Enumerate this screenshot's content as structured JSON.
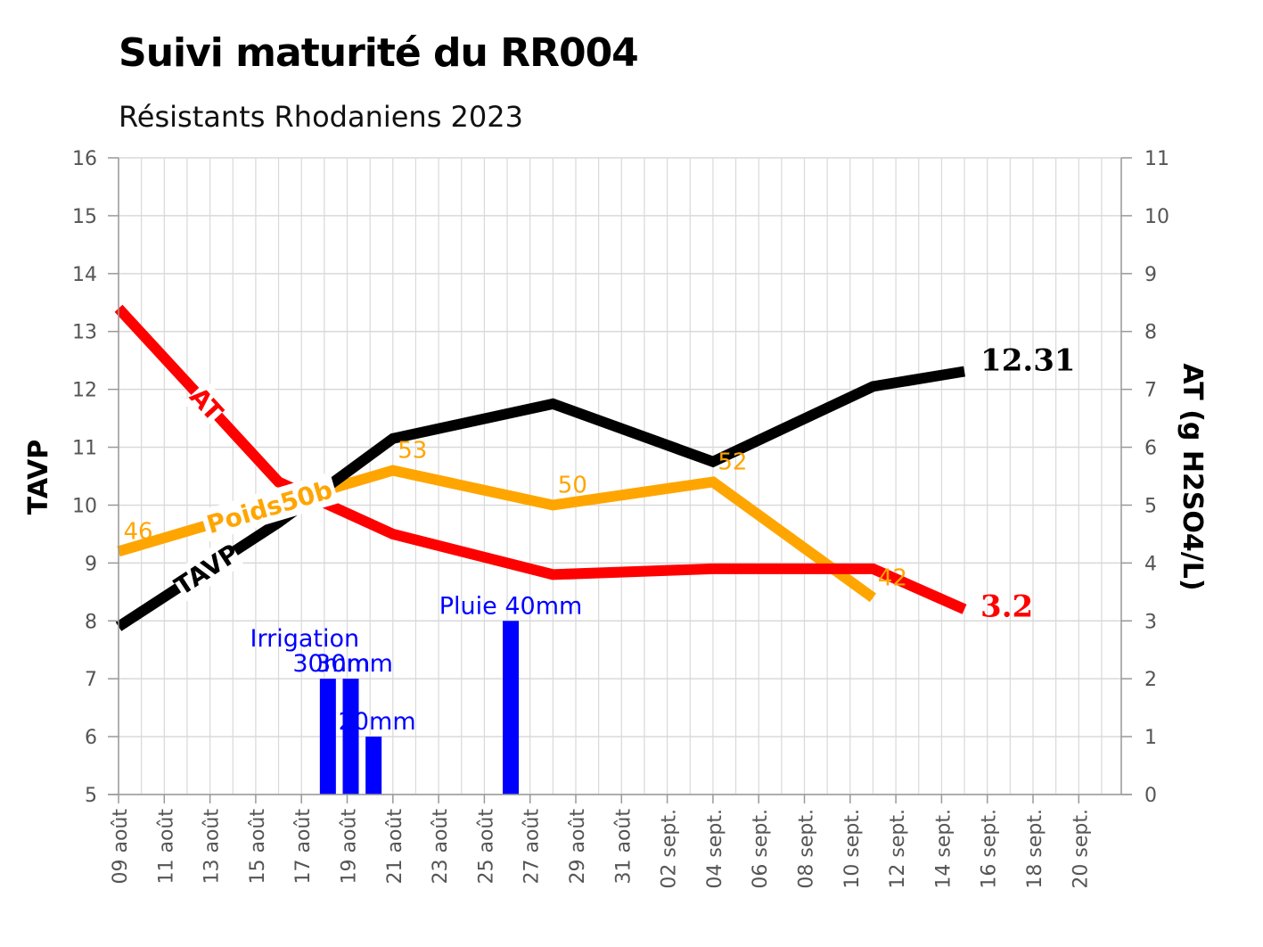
{
  "chart_data": {
    "type": "line",
    "title": "Suivi maturité du RR004",
    "subtitle": "Résistants Rhodaniens 2023",
    "y_left_label": "TAVP",
    "y_right_label": "AT (g H2SO4/L)",
    "ylim_left": [
      5,
      16
    ],
    "ylim_right": [
      0,
      11
    ],
    "y_left_ticks": [
      "5",
      "6",
      "7",
      "8",
      "9",
      "10",
      "11",
      "12",
      "13",
      "14",
      "15",
      "16"
    ],
    "y_right_ticks": [
      "0",
      "1",
      "2",
      "3",
      "4",
      "5",
      "6",
      "7",
      "8",
      "9",
      "10",
      "11"
    ],
    "x_start": "2023-08-09",
    "x_ticks": [
      "09 août",
      "11 août",
      "13 août",
      "15 août",
      "17 août",
      "19 août",
      "21 août",
      "23 août",
      "25 août",
      "27 août",
      "29 août",
      "31 août",
      "02 sept.",
      "04 sept.",
      "06 sept.",
      "08 sept.",
      "10 sept.",
      "12 sept.",
      "14 sept.",
      "16 sept.",
      "18 sept.",
      "20 sept."
    ],
    "grid": true,
    "series": [
      {
        "name": "TAVP",
        "color": "#000000",
        "axis": "left",
        "x": [
          "2023-08-09",
          "2023-08-16",
          "2023-08-21",
          "2023-08-28",
          "2023-09-04",
          "2023-09-11",
          "2023-09-15"
        ],
        "y": [
          7.9,
          9.7,
          11.15,
          11.75,
          10.75,
          12.05,
          12.31
        ],
        "end_label": "12.31"
      },
      {
        "name": "AT",
        "color": "#ff0000",
        "axis": "right",
        "x": [
          "2023-08-09",
          "2023-08-16",
          "2023-08-21",
          "2023-08-28",
          "2023-09-04",
          "2023-09-11",
          "2023-09-15"
        ],
        "y": [
          8.4,
          5.4,
          4.5,
          3.8,
          3.9,
          3.9,
          3.2
        ],
        "end_label": "3.2"
      },
      {
        "name": "Poids50b",
        "color": "#ffa500",
        "axis": "left",
        "x": [
          "2023-08-09",
          "2023-08-21",
          "2023-08-28",
          "2023-09-04",
          "2023-09-11"
        ],
        "y": [
          9.2,
          10.6,
          10.0,
          10.4,
          8.4
        ],
        "point_labels": [
          "46",
          "53",
          "50",
          "52",
          "42"
        ]
      }
    ],
    "bars": {
      "name": "pluviometrie",
      "color": "#0000ff",
      "axis": "right",
      "items": [
        {
          "x": "2023-08-18",
          "value": 2,
          "label": "30mm"
        },
        {
          "x": "2023-08-19",
          "value": 2,
          "label": "30mm"
        },
        {
          "x": "2023-08-20",
          "value": 1,
          "label": "20mm"
        },
        {
          "x": "2023-08-26",
          "value": 3,
          "label": "Pluie 40mm"
        }
      ],
      "annotation": "Irrigation"
    }
  }
}
